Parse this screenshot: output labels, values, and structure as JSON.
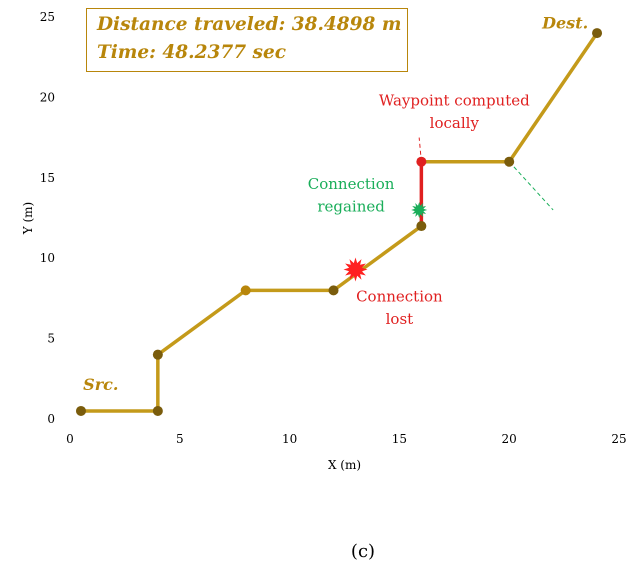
{
  "info": {
    "distance": "Distance traveled: 38.4898 m",
    "time": "Time: 48.2377 sec"
  },
  "caption": "(c)",
  "chart_data": {
    "type": "line",
    "xlabel": "X (m)",
    "ylabel": "Y (m)",
    "xlim": [
      0,
      25
    ],
    "ylim": [
      0,
      25
    ],
    "xticks": [
      0,
      5,
      10,
      15,
      20,
      25
    ],
    "yticks": [
      0,
      5,
      10,
      15,
      20,
      25
    ],
    "grid": false,
    "series": [
      {
        "color": "#C49A1A",
        "points": [
          [
            0.5,
            0.5
          ],
          [
            4,
            0.5
          ],
          [
            4,
            4
          ],
          [
            8,
            8
          ],
          [
            12,
            8
          ],
          [
            16,
            12
          ]
        ]
      },
      {
        "color": "#E02020",
        "points": [
          [
            16,
            12
          ],
          [
            16,
            16
          ]
        ]
      },
      {
        "color": "#C49A1A",
        "points": [
          [
            16,
            16
          ],
          [
            20,
            16
          ],
          [
            24,
            24
          ]
        ]
      }
    ],
    "markers": [
      {
        "x": 0.5,
        "y": 0.5,
        "color": "#7A5C0C"
      },
      {
        "x": 4,
        "y": 0.5,
        "color": "#7A5C0C"
      },
      {
        "x": 4,
        "y": 4,
        "color": "#7A5C0C"
      },
      {
        "x": 8,
        "y": 8,
        "color": "#B8860B"
      },
      {
        "x": 12,
        "y": 8,
        "color": "#7A5C0C"
      },
      {
        "x": 16,
        "y": 12,
        "color": "#7A5C0C"
      },
      {
        "x": 16,
        "y": 16,
        "color": "#E02020"
      },
      {
        "x": 20,
        "y": 16,
        "color": "#7A5C0C"
      },
      {
        "x": 24,
        "y": 24,
        "color": "#7A5C0C"
      }
    ],
    "dashed_lines": [
      {
        "color": "#E02020",
        "points": [
          [
            16,
            16
          ],
          [
            15.9,
            17.5
          ]
        ]
      },
      {
        "color": "#1AAE5A",
        "points": [
          [
            20,
            16
          ],
          [
            22,
            13
          ]
        ]
      }
    ],
    "events": [
      {
        "type": "burst",
        "x": 13,
        "y": 9.3,
        "color": "#FF2020"
      },
      {
        "type": "burst",
        "x": 15.9,
        "y": 13,
        "color": "#1AAE5A"
      }
    ],
    "annotations": [
      {
        "text": "Src.",
        "x": 0.6,
        "y": 1.8,
        "color": "#B8860B",
        "style": "italic-bold"
      },
      {
        "text": "Dest.",
        "x": 21.5,
        "y": 24.3,
        "color": "#B8860B",
        "style": "italic-bold"
      },
      {
        "text": "Waypoint computed",
        "x": 17.5,
        "y": 19.5,
        "color": "#E02020",
        "anchor": "middle"
      },
      {
        "text": "locally",
        "x": 17.5,
        "y": 18.1,
        "color": "#E02020",
        "anchor": "middle"
      },
      {
        "text": "Connection",
        "x": 12.8,
        "y": 14.3,
        "color": "#1AAE5A",
        "anchor": "middle"
      },
      {
        "text": "regained",
        "x": 12.8,
        "y": 12.9,
        "color": "#1AAE5A",
        "anchor": "middle"
      },
      {
        "text": "Connection",
        "x": 15,
        "y": 7.3,
        "color": "#E02020",
        "anchor": "middle"
      },
      {
        "text": "lost",
        "x": 15,
        "y": 5.9,
        "color": "#E02020",
        "anchor": "middle"
      }
    ]
  }
}
